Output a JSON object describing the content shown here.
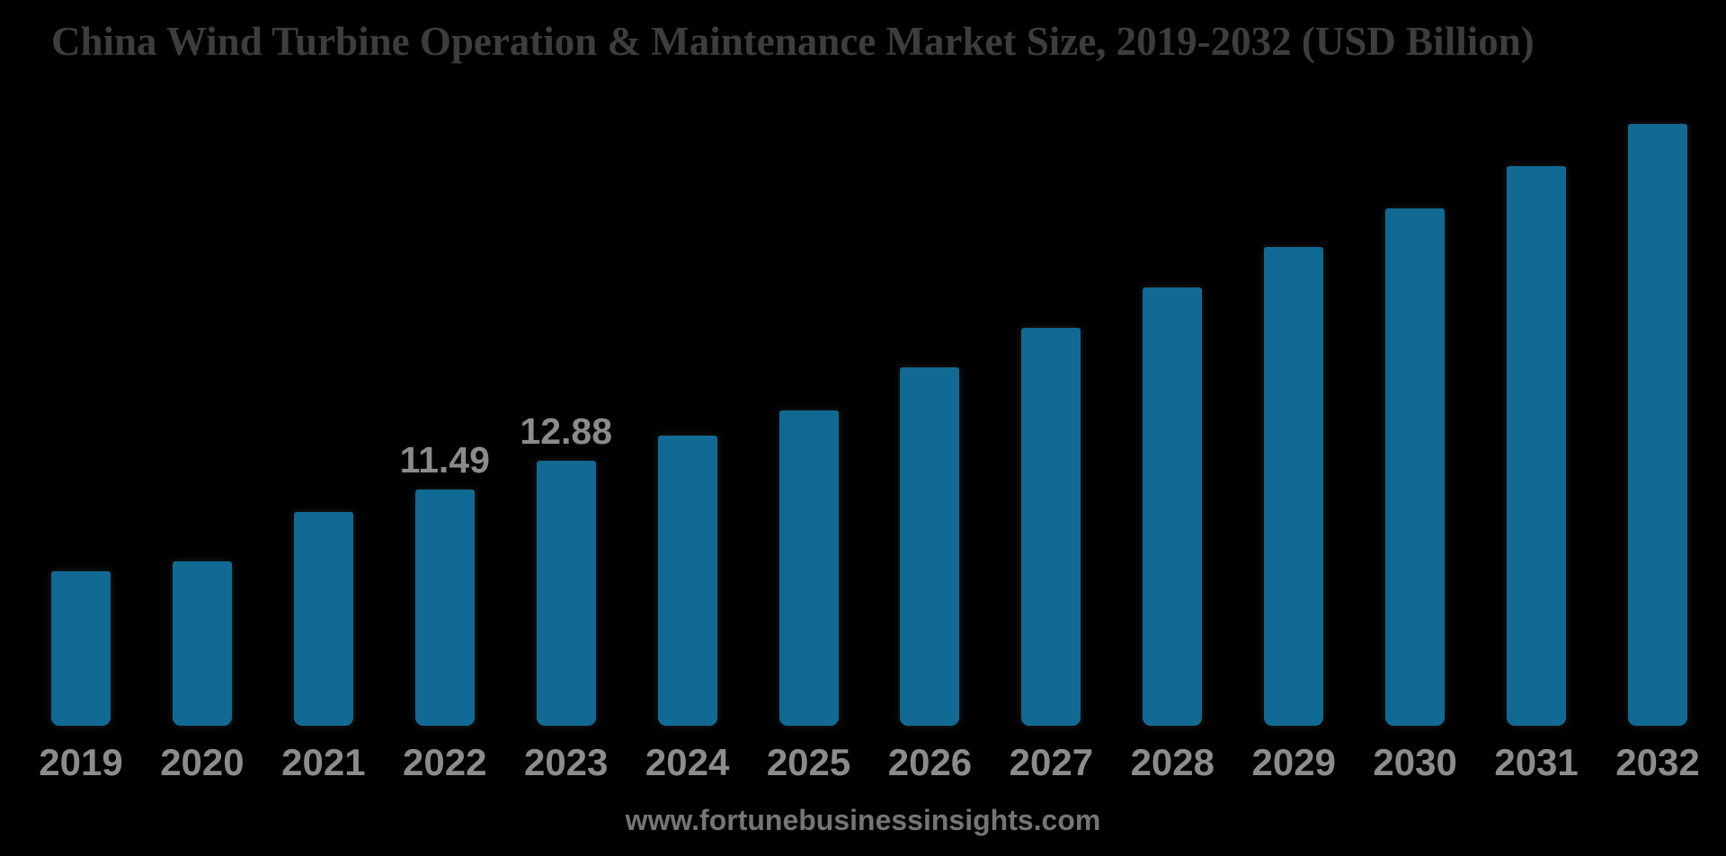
{
  "page": {
    "background_color": "#000000"
  },
  "header": {
    "title": "China Wind Turbine Operation & Maintenance Market Size, 2019-2032 (USD Billion)"
  },
  "footer": {
    "watermark": "www.fortunebusinessinsights.com"
  },
  "colors": {
    "bar": "#116a93",
    "title_text": "#3d3d3f",
    "axis_label_text": "#8c8c8c",
    "data_label_text": "#8b8b8e",
    "watermark_text": "#757575",
    "background": "#000000"
  },
  "chart_data": {
    "type": "bar",
    "title": "China Wind Turbine Operation & Maintenance Market Size, 2019-2032 (USD Billion)",
    "units": "USD Billion",
    "categories": [
      "2019",
      "2020",
      "2021",
      "2022",
      "2023",
      "2024",
      "2025",
      "2026",
      "2027",
      "2028",
      "2029",
      "2030",
      "2031",
      "2032"
    ],
    "values": [
      7.51,
      7.99,
      10.4,
      11.49,
      12.88,
      14.1,
      15.33,
      17.42,
      19.35,
      21.31,
      23.28,
      25.16,
      27.21,
      29.27
    ],
    "data_labels": [
      "",
      "",
      "",
      "11.49",
      "12.88",
      "",
      "",
      "",
      "",
      "",
      "",
      "",
      "",
      ""
    ],
    "labeled_points": [
      {
        "year": "2022",
        "label": "11.49"
      },
      {
        "year": "2023",
        "label": "12.88"
      }
    ],
    "xlabel": "",
    "ylabel": "",
    "ylim": [
      0,
      30
    ],
    "grid": false,
    "legend": null,
    "y_axis_shown": false,
    "bar_color": "#116a93"
  }
}
